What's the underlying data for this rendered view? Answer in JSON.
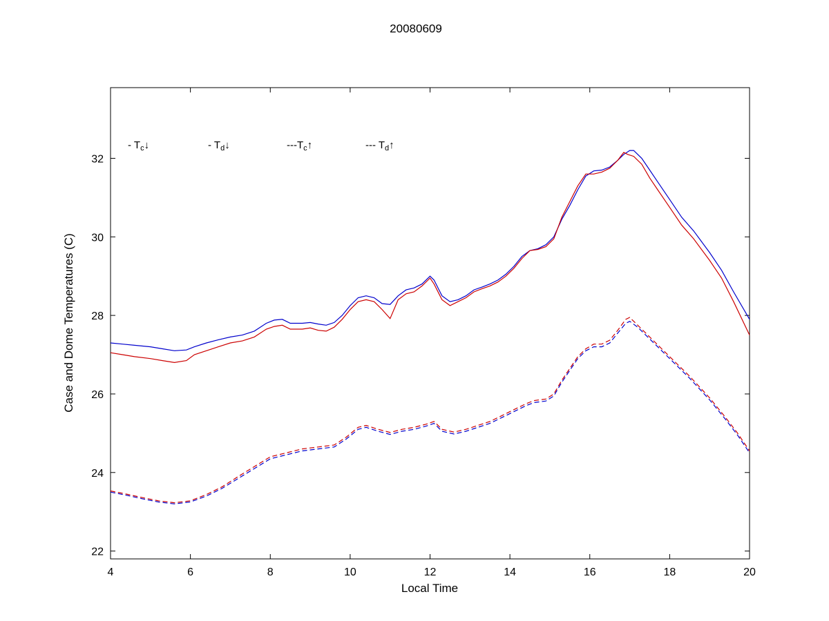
{
  "chart_data": {
    "type": "line",
    "title": "20080609",
    "xlabel": "Local Time",
    "ylabel": "Case and Dome Temperatures (C)",
    "xlim": [
      4,
      20
    ],
    "ylim": [
      21.8,
      33.8
    ],
    "x_ticks": [
      4,
      6,
      8,
      10,
      12,
      14,
      16,
      18,
      20
    ],
    "y_ticks": [
      22,
      24,
      26,
      28,
      30,
      32
    ],
    "grid": false,
    "legend_position": "inside-top-left",
    "series": [
      {
        "name": "tc-down",
        "label": "T_c down",
        "style": "solid",
        "color": "#0000cc",
        "points": [
          [
            4,
            27.3
          ],
          [
            4.3,
            27.27
          ],
          [
            4.6,
            27.24
          ],
          [
            5,
            27.2
          ],
          [
            5.3,
            27.15
          ],
          [
            5.6,
            27.1
          ],
          [
            5.9,
            27.12
          ],
          [
            6.1,
            27.2
          ],
          [
            6.4,
            27.3
          ],
          [
            6.7,
            27.38
          ],
          [
            7,
            27.45
          ],
          [
            7.3,
            27.5
          ],
          [
            7.6,
            27.6
          ],
          [
            7.9,
            27.8
          ],
          [
            8.1,
            27.88
          ],
          [
            8.3,
            27.9
          ],
          [
            8.5,
            27.8
          ],
          [
            8.8,
            27.8
          ],
          [
            9,
            27.82
          ],
          [
            9.2,
            27.78
          ],
          [
            9.4,
            27.75
          ],
          [
            9.6,
            27.82
          ],
          [
            9.8,
            28.0
          ],
          [
            10,
            28.25
          ],
          [
            10.2,
            28.45
          ],
          [
            10.4,
            28.5
          ],
          [
            10.6,
            28.45
          ],
          [
            10.8,
            28.3
          ],
          [
            11,
            28.28
          ],
          [
            11.2,
            28.5
          ],
          [
            11.4,
            28.65
          ],
          [
            11.6,
            28.7
          ],
          [
            11.8,
            28.8
          ],
          [
            12,
            29.0
          ],
          [
            12.1,
            28.9
          ],
          [
            12.3,
            28.5
          ],
          [
            12.5,
            28.35
          ],
          [
            12.7,
            28.4
          ],
          [
            12.9,
            28.5
          ],
          [
            13.1,
            28.65
          ],
          [
            13.3,
            28.72
          ],
          [
            13.5,
            28.8
          ],
          [
            13.7,
            28.9
          ],
          [
            13.9,
            29.05
          ],
          [
            14.1,
            29.25
          ],
          [
            14.3,
            29.5
          ],
          [
            14.5,
            29.65
          ],
          [
            14.7,
            29.7
          ],
          [
            14.9,
            29.8
          ],
          [
            15.1,
            30.0
          ],
          [
            15.3,
            30.45
          ],
          [
            15.5,
            30.8
          ],
          [
            15.7,
            31.2
          ],
          [
            15.9,
            31.55
          ],
          [
            16.1,
            31.68
          ],
          [
            16.3,
            31.7
          ],
          [
            16.5,
            31.78
          ],
          [
            16.7,
            31.95
          ],
          [
            16.85,
            32.1
          ],
          [
            17,
            32.2
          ],
          [
            17.1,
            32.2
          ],
          [
            17.3,
            32.0
          ],
          [
            17.5,
            31.7
          ],
          [
            17.7,
            31.4
          ],
          [
            18,
            30.95
          ],
          [
            18.3,
            30.5
          ],
          [
            18.6,
            30.15
          ],
          [
            19,
            29.6
          ],
          [
            19.3,
            29.15
          ],
          [
            19.6,
            28.6
          ],
          [
            20,
            27.9
          ]
        ]
      },
      {
        "name": "td-down",
        "label": "T_d down",
        "style": "solid",
        "color": "#cc0000",
        "points": [
          [
            4,
            27.05
          ],
          [
            4.3,
            27.0
          ],
          [
            4.6,
            26.95
          ],
          [
            5,
            26.9
          ],
          [
            5.3,
            26.85
          ],
          [
            5.6,
            26.8
          ],
          [
            5.9,
            26.85
          ],
          [
            6.1,
            27.0
          ],
          [
            6.4,
            27.1
          ],
          [
            6.7,
            27.2
          ],
          [
            7,
            27.3
          ],
          [
            7.3,
            27.35
          ],
          [
            7.6,
            27.45
          ],
          [
            7.9,
            27.65
          ],
          [
            8.1,
            27.72
          ],
          [
            8.3,
            27.75
          ],
          [
            8.5,
            27.65
          ],
          [
            8.8,
            27.65
          ],
          [
            9,
            27.68
          ],
          [
            9.2,
            27.62
          ],
          [
            9.4,
            27.6
          ],
          [
            9.6,
            27.7
          ],
          [
            9.8,
            27.9
          ],
          [
            10,
            28.15
          ],
          [
            10.2,
            28.35
          ],
          [
            10.4,
            28.4
          ],
          [
            10.6,
            28.35
          ],
          [
            10.8,
            28.15
          ],
          [
            11,
            27.92
          ],
          [
            11.2,
            28.4
          ],
          [
            11.4,
            28.55
          ],
          [
            11.6,
            28.6
          ],
          [
            11.8,
            28.75
          ],
          [
            12,
            28.95
          ],
          [
            12.1,
            28.8
          ],
          [
            12.3,
            28.4
          ],
          [
            12.5,
            28.25
          ],
          [
            12.7,
            28.35
          ],
          [
            12.9,
            28.45
          ],
          [
            13.1,
            28.6
          ],
          [
            13.3,
            28.68
          ],
          [
            13.5,
            28.75
          ],
          [
            13.7,
            28.85
          ],
          [
            13.9,
            29.0
          ],
          [
            14.1,
            29.2
          ],
          [
            14.3,
            29.45
          ],
          [
            14.5,
            29.65
          ],
          [
            14.7,
            29.68
          ],
          [
            14.9,
            29.75
          ],
          [
            15.1,
            29.95
          ],
          [
            15.3,
            30.5
          ],
          [
            15.5,
            30.9
          ],
          [
            15.7,
            31.3
          ],
          [
            15.9,
            31.6
          ],
          [
            16.1,
            31.6
          ],
          [
            16.3,
            31.65
          ],
          [
            16.5,
            31.75
          ],
          [
            16.7,
            31.95
          ],
          [
            16.85,
            32.15
          ],
          [
            16.95,
            32.1
          ],
          [
            17.1,
            32.05
          ],
          [
            17.3,
            31.85
          ],
          [
            17.5,
            31.5
          ],
          [
            17.7,
            31.2
          ],
          [
            18,
            30.75
          ],
          [
            18.3,
            30.3
          ],
          [
            18.6,
            29.95
          ],
          [
            19,
            29.4
          ],
          [
            19.3,
            28.95
          ],
          [
            19.6,
            28.35
          ],
          [
            20,
            27.5
          ]
        ]
      },
      {
        "name": "tc-up",
        "label": "T_c up",
        "style": "dashed",
        "color": "#0000cc",
        "points": [
          [
            4,
            23.5
          ],
          [
            4.4,
            23.42
          ],
          [
            4.8,
            23.33
          ],
          [
            5.2,
            23.25
          ],
          [
            5.6,
            23.2
          ],
          [
            6,
            23.25
          ],
          [
            6.4,
            23.4
          ],
          [
            6.8,
            23.6
          ],
          [
            7.2,
            23.85
          ],
          [
            7.6,
            24.1
          ],
          [
            8,
            24.35
          ],
          [
            8.4,
            24.45
          ],
          [
            8.8,
            24.55
          ],
          [
            9.2,
            24.6
          ],
          [
            9.6,
            24.65
          ],
          [
            9.9,
            24.85
          ],
          [
            10.2,
            25.1
          ],
          [
            10.4,
            25.15
          ],
          [
            10.7,
            25.05
          ],
          [
            11,
            24.97
          ],
          [
            11.3,
            25.05
          ],
          [
            11.6,
            25.1
          ],
          [
            11.9,
            25.18
          ],
          [
            12.1,
            25.25
          ],
          [
            12.3,
            25.05
          ],
          [
            12.6,
            24.98
          ],
          [
            12.9,
            25.05
          ],
          [
            13.2,
            25.15
          ],
          [
            13.5,
            25.25
          ],
          [
            13.8,
            25.4
          ],
          [
            14.1,
            25.55
          ],
          [
            14.4,
            25.7
          ],
          [
            14.6,
            25.78
          ],
          [
            14.9,
            25.82
          ],
          [
            15.1,
            25.95
          ],
          [
            15.3,
            26.3
          ],
          [
            15.5,
            26.6
          ],
          [
            15.7,
            26.9
          ],
          [
            15.9,
            27.1
          ],
          [
            16.1,
            27.2
          ],
          [
            16.3,
            27.2
          ],
          [
            16.5,
            27.3
          ],
          [
            16.7,
            27.55
          ],
          [
            16.9,
            27.8
          ],
          [
            17,
            27.85
          ],
          [
            17.2,
            27.7
          ],
          [
            17.5,
            27.4
          ],
          [
            17.8,
            27.1
          ],
          [
            18.1,
            26.8
          ],
          [
            18.5,
            26.4
          ],
          [
            19,
            25.85
          ],
          [
            19.4,
            25.35
          ],
          [
            19.7,
            24.95
          ],
          [
            20,
            24.5
          ]
        ]
      },
      {
        "name": "td-up",
        "label": "T_d up",
        "style": "dashed",
        "color": "#cc0000",
        "points": [
          [
            4,
            23.53
          ],
          [
            4.4,
            23.45
          ],
          [
            4.8,
            23.36
          ],
          [
            5.2,
            23.28
          ],
          [
            5.6,
            23.23
          ],
          [
            6,
            23.28
          ],
          [
            6.4,
            23.44
          ],
          [
            6.8,
            23.64
          ],
          [
            7.2,
            23.9
          ],
          [
            7.6,
            24.15
          ],
          [
            8,
            24.4
          ],
          [
            8.4,
            24.5
          ],
          [
            8.8,
            24.6
          ],
          [
            9.2,
            24.65
          ],
          [
            9.6,
            24.7
          ],
          [
            9.9,
            24.9
          ],
          [
            10.2,
            25.15
          ],
          [
            10.4,
            25.2
          ],
          [
            10.7,
            25.1
          ],
          [
            11,
            25.02
          ],
          [
            11.3,
            25.1
          ],
          [
            11.6,
            25.15
          ],
          [
            11.9,
            25.23
          ],
          [
            12.1,
            25.3
          ],
          [
            12.3,
            25.1
          ],
          [
            12.6,
            25.03
          ],
          [
            12.9,
            25.1
          ],
          [
            13.2,
            25.2
          ],
          [
            13.5,
            25.3
          ],
          [
            13.8,
            25.45
          ],
          [
            14.1,
            25.6
          ],
          [
            14.4,
            25.75
          ],
          [
            14.6,
            25.83
          ],
          [
            14.9,
            25.87
          ],
          [
            15.1,
            26.0
          ],
          [
            15.3,
            26.35
          ],
          [
            15.5,
            26.65
          ],
          [
            15.7,
            26.95
          ],
          [
            15.9,
            27.15
          ],
          [
            16.1,
            27.27
          ],
          [
            16.3,
            27.27
          ],
          [
            16.5,
            27.37
          ],
          [
            16.7,
            27.62
          ],
          [
            16.9,
            27.9
          ],
          [
            17,
            27.95
          ],
          [
            17.2,
            27.75
          ],
          [
            17.5,
            27.45
          ],
          [
            17.8,
            27.15
          ],
          [
            18.1,
            26.85
          ],
          [
            18.5,
            26.45
          ],
          [
            19,
            25.9
          ],
          [
            19.4,
            25.4
          ],
          [
            19.7,
            25.0
          ],
          [
            20,
            24.55
          ]
        ]
      }
    ]
  },
  "legend": {
    "items": [
      {
        "pre": "- T",
        "sub": "c",
        "arrow": "↓",
        "color": "#0000cc"
      },
      {
        "pre": "- T",
        "sub": "d",
        "arrow": "↓",
        "color": "#cc0000"
      },
      {
        "pre": "---T",
        "sub": "c",
        "arrow": "↑",
        "color": "#0000cc"
      },
      {
        "pre": "--- T",
        "sub": "d",
        "arrow": "↑",
        "color": "#cc0000"
      }
    ]
  }
}
